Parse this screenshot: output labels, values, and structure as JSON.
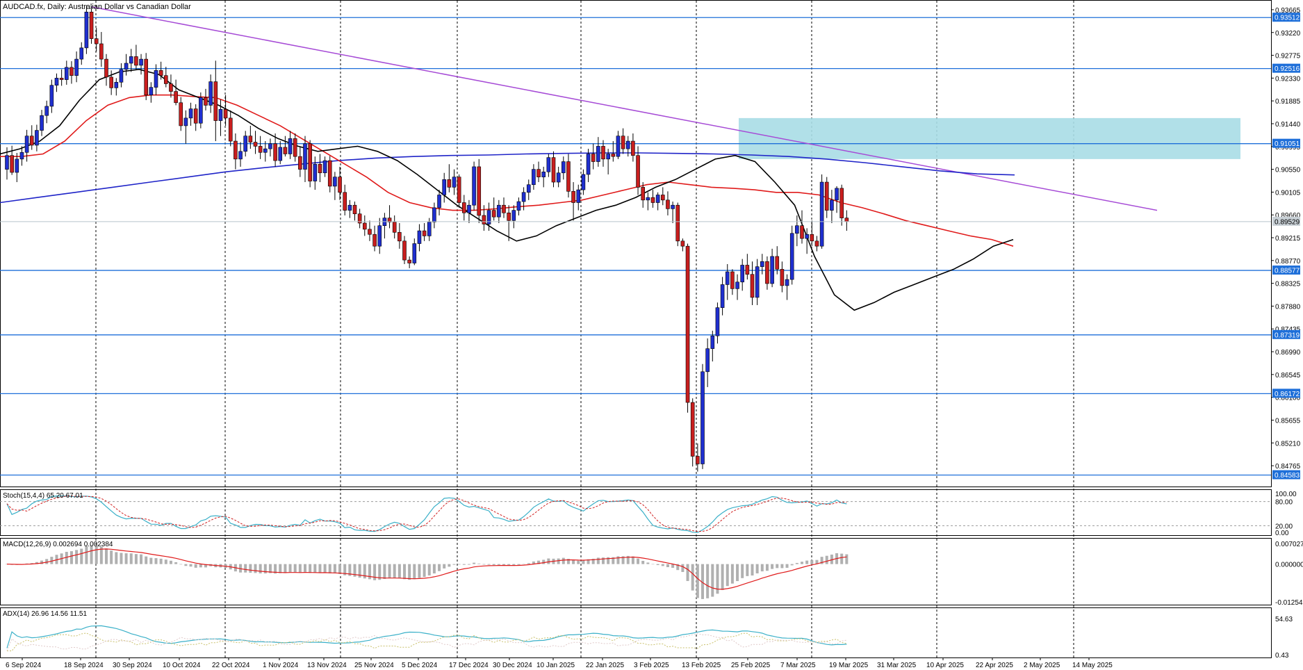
{
  "header": {
    "symbol_line": "AUDCAD.fx, Daily:  Australian Dollar vs Canadian Dollar"
  },
  "colors": {
    "bull_candle": "#1f2fd0",
    "bear_candle": "#c81e1e",
    "ma_short": "#000000",
    "ma_mid": "#e01a1a",
    "ma_long": "#1f24c8",
    "trendline": "#a64bd6",
    "horizontal_level": "#1e6fd9",
    "zone_fill": "#a8dde6",
    "stoch_main": "#3ab0c8",
    "stoch_signal": "#d02020",
    "macd_hist": "#b0b0b0",
    "macd_signal": "#e01a1a",
    "adx_main": "#3ab0c8",
    "adx_plus": "#c9c06a",
    "adx_minus": "#e0c9c9"
  },
  "chart_data": {
    "type": "candlestick",
    "price_axis": {
      "range": [
        0.844,
        0.938
      ],
      "tick_labels": [
        "0.93665",
        "0.93220",
        "0.92775",
        "0.92330",
        "0.91885",
        "0.91440",
        "0.90995",
        "0.90550",
        "0.90105",
        "0.89660",
        "0.89215",
        "0.88770",
        "0.88325",
        "0.87880",
        "0.87435",
        "0.86990",
        "0.86545",
        "0.86100",
        "0.85655",
        "0.85210",
        "0.84765"
      ],
      "current_price_label": "0.89529"
    },
    "date_labels": [
      "6 Sep 2024",
      "18 Sep 2024",
      "30 Sep 2024",
      "10 Oct 2024",
      "22 Oct 2024",
      "1 Nov 2024",
      "13 Nov 2024",
      "25 Nov 2024",
      "5 Dec 2024",
      "17 Dec 2024",
      "30 Dec 2024",
      "10 Jan 2025",
      "22 Jan 2025",
      "3 Feb 2025",
      "13 Feb 2025",
      "25 Feb 2025",
      "7 Mar 2025",
      "19 Mar 2025",
      "31 Mar 2025",
      "10 Apr 2025",
      "22 Apr 2025",
      "2 May 2025",
      "14 May 2025"
    ],
    "horizontal_levels": [
      "0.93512",
      "0.92516",
      "0.91051",
      "0.88577",
      "0.87319",
      "0.86172",
      "0.84583"
    ],
    "resistance_zone": {
      "from_price": 0.9075,
      "to_price": 0.9155,
      "start_date": "7 Mar 2025"
    },
    "trendline": {
      "start": {
        "date": "30 Sep 2024",
        "price": 0.9372
      },
      "end": {
        "date": "14 May 2025",
        "price": 0.9024
      }
    },
    "candles": [
      [
        0.9055,
        0.9098,
        0.9035,
        0.9082
      ],
      [
        0.9082,
        0.9101,
        0.9044,
        0.9049
      ],
      [
        0.9049,
        0.9087,
        0.903,
        0.9075
      ],
      [
        0.9075,
        0.91,
        0.9062,
        0.9088
      ],
      [
        0.9088,
        0.9132,
        0.907,
        0.912
      ],
      [
        0.912,
        0.9141,
        0.9093,
        0.9102
      ],
      [
        0.9102,
        0.9142,
        0.909,
        0.9131
      ],
      [
        0.9131,
        0.9171,
        0.912,
        0.916
      ],
      [
        0.916,
        0.9189,
        0.9145,
        0.9178
      ],
      [
        0.9178,
        0.923,
        0.9165,
        0.9219
      ],
      [
        0.9219,
        0.9242,
        0.9206,
        0.9233
      ],
      [
        0.9233,
        0.925,
        0.9218,
        0.923
      ],
      [
        0.923,
        0.9267,
        0.922,
        0.9254
      ],
      [
        0.9254,
        0.9266,
        0.9222,
        0.9238
      ],
      [
        0.9238,
        0.9285,
        0.9225,
        0.927
      ],
      [
        0.927,
        0.9303,
        0.9259,
        0.9292
      ],
      [
        0.9292,
        0.9375,
        0.928,
        0.9362
      ],
      [
        0.9362,
        0.9373,
        0.93,
        0.931
      ],
      [
        0.931,
        0.9331,
        0.9285,
        0.93
      ],
      [
        0.93,
        0.9323,
        0.9255,
        0.927
      ],
      [
        0.927,
        0.928,
        0.9218,
        0.9235
      ],
      [
        0.9235,
        0.9248,
        0.92,
        0.9214
      ],
      [
        0.9214,
        0.9233,
        0.9199,
        0.9225
      ],
      [
        0.9225,
        0.9262,
        0.9215,
        0.925
      ],
      [
        0.925,
        0.928,
        0.9238,
        0.9262
      ],
      [
        0.9262,
        0.929,
        0.9245,
        0.9275
      ],
      [
        0.9275,
        0.9298,
        0.925,
        0.9258
      ],
      [
        0.9258,
        0.928,
        0.924,
        0.927
      ],
      [
        0.927,
        0.9282,
        0.919,
        0.92
      ],
      [
        0.92,
        0.9225,
        0.9185,
        0.9215
      ],
      [
        0.9215,
        0.926,
        0.92,
        0.9248
      ],
      [
        0.9248,
        0.9265,
        0.923,
        0.9238
      ],
      [
        0.9238,
        0.9255,
        0.9215,
        0.9222
      ],
      [
        0.9222,
        0.924,
        0.9195,
        0.9207
      ],
      [
        0.9207,
        0.923,
        0.918,
        0.9185
      ],
      [
        0.9185,
        0.9196,
        0.913,
        0.914
      ],
      [
        0.914,
        0.917,
        0.9105,
        0.9155
      ],
      [
        0.9155,
        0.9185,
        0.914,
        0.9173
      ],
      [
        0.9173,
        0.9182,
        0.913,
        0.9145
      ],
      [
        0.9145,
        0.9205,
        0.9135,
        0.9195
      ],
      [
        0.9195,
        0.9212,
        0.917,
        0.918
      ],
      [
        0.918,
        0.924,
        0.9165,
        0.9226
      ],
      [
        0.9226,
        0.9267,
        0.911,
        0.915
      ],
      [
        0.915,
        0.9191,
        0.912,
        0.9172
      ],
      [
        0.9172,
        0.92,
        0.914,
        0.9155
      ],
      [
        0.9155,
        0.917,
        0.91,
        0.911
      ],
      [
        0.911,
        0.9125,
        0.9055,
        0.9075
      ],
      [
        0.9075,
        0.9108,
        0.906,
        0.909
      ],
      [
        0.909,
        0.913,
        0.908,
        0.912
      ],
      [
        0.912,
        0.914,
        0.9095,
        0.9108
      ],
      [
        0.9108,
        0.913,
        0.9085,
        0.91
      ],
      [
        0.91,
        0.912,
        0.9075,
        0.9088
      ],
      [
        0.9088,
        0.911,
        0.907,
        0.9095
      ],
      [
        0.9095,
        0.9115,
        0.908,
        0.9105
      ],
      [
        0.9105,
        0.9125,
        0.906,
        0.9072
      ],
      [
        0.9072,
        0.911,
        0.9065,
        0.9098
      ],
      [
        0.9098,
        0.912,
        0.908,
        0.9085
      ],
      [
        0.9085,
        0.913,
        0.9075,
        0.9115
      ],
      [
        0.9115,
        0.9125,
        0.907,
        0.908
      ],
      [
        0.908,
        0.91,
        0.904,
        0.9055
      ],
      [
        0.9055,
        0.912,
        0.903,
        0.9105
      ],
      [
        0.9105,
        0.9112,
        0.902,
        0.9032
      ],
      [
        0.9032,
        0.908,
        0.9015,
        0.9065
      ],
      [
        0.9065,
        0.9085,
        0.903,
        0.9048
      ],
      [
        0.9048,
        0.908,
        0.904,
        0.9072
      ],
      [
        0.9072,
        0.9081,
        0.901,
        0.9022
      ],
      [
        0.9022,
        0.905,
        0.8995,
        0.904
      ],
      [
        0.904,
        0.906,
        0.8995,
        0.901
      ],
      [
        0.901,
        0.9025,
        0.8965,
        0.8975
      ],
      [
        0.8975,
        0.8995,
        0.896,
        0.8985
      ],
      [
        0.8985,
        0.8992,
        0.8955,
        0.8968
      ],
      [
        0.8968,
        0.8978,
        0.894,
        0.895
      ],
      [
        0.895,
        0.8965,
        0.8925,
        0.8938
      ],
      [
        0.8938,
        0.8955,
        0.8915,
        0.8928
      ],
      [
        0.8928,
        0.8945,
        0.8895,
        0.8905
      ],
      [
        0.8905,
        0.896,
        0.889,
        0.8945
      ],
      [
        0.8945,
        0.897,
        0.892,
        0.896
      ],
      [
        0.896,
        0.8985,
        0.894,
        0.8952
      ],
      [
        0.8952,
        0.8965,
        0.892,
        0.8932
      ],
      [
        0.8932,
        0.895,
        0.89,
        0.8915
      ],
      [
        0.8915,
        0.8925,
        0.887,
        0.8878
      ],
      [
        0.8878,
        0.8885,
        0.8862,
        0.8872
      ],
      [
        0.8872,
        0.892,
        0.8868,
        0.891
      ],
      [
        0.891,
        0.8948,
        0.8895,
        0.8935
      ],
      [
        0.8935,
        0.895,
        0.8915,
        0.8925
      ],
      [
        0.8925,
        0.896,
        0.8915,
        0.8952
      ],
      [
        0.8952,
        0.899,
        0.894,
        0.898
      ],
      [
        0.898,
        0.9015,
        0.8965,
        0.9005
      ],
      [
        0.9005,
        0.9048,
        0.899,
        0.9035
      ],
      [
        0.9035,
        0.9065,
        0.901,
        0.902
      ],
      [
        0.902,
        0.9055,
        0.9005,
        0.904
      ],
      [
        0.904,
        0.9045,
        0.898,
        0.899
      ],
      [
        0.899,
        0.9005,
        0.8955,
        0.897
      ],
      [
        0.897,
        0.8995,
        0.895,
        0.8985
      ],
      [
        0.8985,
        0.907,
        0.8975,
        0.906
      ],
      [
        0.906,
        0.9075,
        0.895,
        0.8965
      ],
      [
        0.8965,
        0.8985,
        0.8935,
        0.8948
      ],
      [
        0.8948,
        0.899,
        0.8935,
        0.8975
      ],
      [
        0.8975,
        0.9,
        0.8955,
        0.8962
      ],
      [
        0.8962,
        0.8995,
        0.895,
        0.8985
      ],
      [
        0.8985,
        0.9,
        0.896,
        0.897
      ],
      [
        0.897,
        0.8985,
        0.8915,
        0.8955
      ],
      [
        0.8955,
        0.8985,
        0.894,
        0.8975
      ],
      [
        0.8975,
        0.9,
        0.8965,
        0.8992
      ],
      [
        0.8992,
        0.902,
        0.8975,
        0.901
      ],
      [
        0.901,
        0.9035,
        0.8995,
        0.9025
      ],
      [
        0.9025,
        0.9065,
        0.9015,
        0.9055
      ],
      [
        0.9055,
        0.907,
        0.903,
        0.904
      ],
      [
        0.904,
        0.906,
        0.902,
        0.905
      ],
      [
        0.905,
        0.9085,
        0.904,
        0.9078
      ],
      [
        0.9078,
        0.909,
        0.902,
        0.903
      ],
      [
        0.903,
        0.906,
        0.902,
        0.9048
      ],
      [
        0.9048,
        0.908,
        0.9035,
        0.907
      ],
      [
        0.907,
        0.9085,
        0.9,
        0.9012
      ],
      [
        0.9012,
        0.903,
        0.8955,
        0.899
      ],
      [
        0.899,
        0.9025,
        0.8975,
        0.9015
      ],
      [
        0.9015,
        0.9055,
        0.9005,
        0.9045
      ],
      [
        0.9045,
        0.9095,
        0.903,
        0.9085
      ],
      [
        0.9085,
        0.9105,
        0.9055,
        0.907
      ],
      [
        0.907,
        0.9118,
        0.906,
        0.91
      ],
      [
        0.91,
        0.9112,
        0.906,
        0.9075
      ],
      [
        0.9075,
        0.9095,
        0.9045,
        0.9085
      ],
      [
        0.9085,
        0.911,
        0.907,
        0.908
      ],
      [
        0.908,
        0.913,
        0.9075,
        0.912
      ],
      [
        0.912,
        0.9135,
        0.9085,
        0.9095
      ],
      [
        0.9095,
        0.912,
        0.908,
        0.911
      ],
      [
        0.911,
        0.9125,
        0.907,
        0.9082
      ],
      [
        0.9082,
        0.91,
        0.9005,
        0.902
      ],
      [
        0.902,
        0.903,
        0.898,
        0.8995
      ],
      [
        0.8995,
        0.901,
        0.8975,
        0.9
      ],
      [
        0.9,
        0.9015,
        0.898,
        0.899
      ],
      [
        0.899,
        0.901,
        0.8975,
        0.9005
      ],
      [
        0.9005,
        0.902,
        0.8985,
        0.8995
      ],
      [
        0.8995,
        0.9012,
        0.8965,
        0.8978
      ],
      [
        0.8978,
        0.8992,
        0.895,
        0.8985
      ],
      [
        0.8985,
        0.899,
        0.8905,
        0.8915
      ],
      [
        0.8915,
        0.892,
        0.8895,
        0.8905
      ],
      [
        0.8905,
        0.891,
        0.858,
        0.86
      ],
      [
        0.86,
        0.8608,
        0.8475,
        0.8495
      ],
      [
        0.8495,
        0.852,
        0.8465,
        0.848
      ],
      [
        0.848,
        0.8675,
        0.847,
        0.866
      ],
      [
        0.866,
        0.8725,
        0.863,
        0.8705
      ],
      [
        0.8705,
        0.874,
        0.868,
        0.873
      ],
      [
        0.873,
        0.8795,
        0.8715,
        0.8785
      ],
      [
        0.8785,
        0.8845,
        0.877,
        0.883
      ],
      [
        0.883,
        0.887,
        0.88,
        0.8855
      ],
      [
        0.8855,
        0.886,
        0.881,
        0.8822
      ],
      [
        0.8822,
        0.885,
        0.88,
        0.8835
      ],
      [
        0.8835,
        0.888,
        0.8818,
        0.8868
      ],
      [
        0.8868,
        0.889,
        0.884,
        0.885
      ],
      [
        0.885,
        0.8875,
        0.879,
        0.8805
      ],
      [
        0.8805,
        0.888,
        0.879,
        0.8865
      ],
      [
        0.8865,
        0.889,
        0.885,
        0.8875
      ],
      [
        0.8875,
        0.8885,
        0.882,
        0.8832
      ],
      [
        0.8832,
        0.89,
        0.8825,
        0.8885
      ],
      [
        0.8885,
        0.8905,
        0.885,
        0.886
      ],
      [
        0.886,
        0.8875,
        0.8815,
        0.8828
      ],
      [
        0.8828,
        0.885,
        0.88,
        0.884
      ],
      [
        0.884,
        0.8945,
        0.883,
        0.893
      ],
      [
        0.893,
        0.8965,
        0.8905,
        0.8945
      ],
      [
        0.8945,
        0.8975,
        0.891,
        0.892
      ],
      [
        0.892,
        0.894,
        0.889,
        0.8928
      ],
      [
        0.8928,
        0.8955,
        0.8905,
        0.8915
      ],
      [
        0.8915,
        0.8925,
        0.8895,
        0.8905
      ],
      [
        0.8905,
        0.9045,
        0.89,
        0.903
      ],
      [
        0.903,
        0.904,
        0.896,
        0.8975
      ],
      [
        0.8975,
        0.9015,
        0.895,
        0.8995
      ],
      [
        0.8995,
        0.9022,
        0.897,
        0.9018
      ],
      [
        0.9018,
        0.9025,
        0.8945,
        0.896
      ],
      [
        0.896,
        0.8975,
        0.8935,
        0.8953
      ]
    ],
    "moving_averages": {
      "short": [
        [
          0.9085,
          0.9095,
          0.911,
          0.914,
          0.919,
          0.923,
          0.9245,
          0.925,
          0.924,
          0.921,
          0.9195,
          0.918,
          0.916,
          0.9135,
          0.9115,
          0.91,
          0.909,
          0.9095,
          0.91,
          0.909,
          0.9072,
          0.9045,
          0.9015,
          0.8985,
          0.896,
          0.8935,
          0.8915,
          0.8925,
          0.8945,
          0.896,
          0.8975,
          0.8985,
          0.9,
          0.902,
          0.9035,
          0.9055,
          0.9075,
          0.9082,
          0.907,
          0.903,
          0.8985,
          0.8885,
          0.881,
          0.878,
          0.8795,
          0.8815,
          0.883,
          0.8845,
          0.886,
          0.888,
          0.8905,
          0.8918
        ]
      ],
      "mid": [
        [
          0.908,
          0.908,
          0.9085,
          0.911,
          0.915,
          0.918,
          0.9195,
          0.92,
          0.92,
          0.9197,
          0.9195,
          0.918,
          0.916,
          0.914,
          0.9115,
          0.909,
          0.9065,
          0.904,
          0.901,
          0.899,
          0.898,
          0.8975,
          0.8975,
          0.8978,
          0.8982,
          0.8985,
          0.899,
          0.8995,
          0.9005,
          0.9015,
          0.9025,
          0.903,
          0.9025,
          0.902,
          0.9018,
          0.9015,
          0.901,
          0.901,
          0.9005,
          0.899,
          0.898,
          0.8968,
          0.8955,
          0.8945,
          0.8935,
          0.8925,
          0.8918,
          0.8905
        ]
      ],
      "long": [
        [
          0.899,
          0.9,
          0.901,
          0.902,
          0.903,
          0.904,
          0.905,
          0.9058,
          0.9065,
          0.9072,
          0.9077,
          0.908,
          0.9082,
          0.9083,
          0.9085,
          0.9086,
          0.9087,
          0.9087,
          0.9086,
          0.9085,
          0.9083,
          0.908,
          0.9075,
          0.9068,
          0.906,
          0.9052,
          0.9046,
          0.9044
        ]
      ]
    },
    "indicators": {
      "stochastic": {
        "label": "Stoch(15,4,4) 65.20 67.01",
        "scale_labels": [
          "100.00",
          "80.00",
          "20.00",
          "0.00"
        ]
      },
      "macd": {
        "label": "MACD(12,26,9) 0.002694 0.002384",
        "scale_labels": [
          "0.007027",
          "0.000000",
          "-0.012541"
        ]
      },
      "adx": {
        "label": "ADX(14) 26.96 14.56 11.51",
        "scale_labels": [
          "54.63",
          "0.43"
        ]
      }
    }
  }
}
